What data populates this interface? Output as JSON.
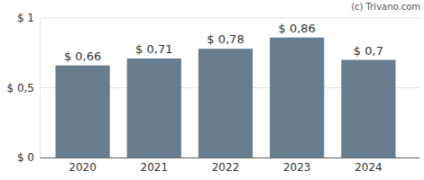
{
  "chart_data": {
    "type": "bar",
    "annotation": "(c) Trivano.com",
    "categories": [
      "2020",
      "2021",
      "2022",
      "2023",
      "2024"
    ],
    "values": [
      0.66,
      0.71,
      0.78,
      0.86,
      0.7
    ],
    "value_labels": [
      "$ 0,66",
      "$ 0,71",
      "$ 0,78",
      "$ 0,86",
      "$ 0,7"
    ],
    "data_labels": true,
    "color": "#677d8e",
    "ylim": [
      0,
      1
    ],
    "yticks": [
      {
        "value": 0,
        "label": "$ 0"
      },
      {
        "value": 0.5,
        "label": "$ 0,5"
      },
      {
        "value": 1,
        "label": "$ 1"
      }
    ],
    "grid": true
  }
}
